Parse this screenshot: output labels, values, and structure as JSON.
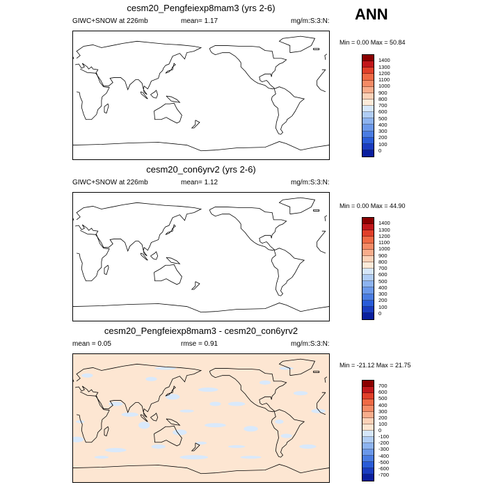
{
  "season": "ANN",
  "panels": [
    {
      "title": "cesm20_Pengfeiexp8mam3 (yrs 2-6)",
      "left_label": "GIWC+SNOW at 226mb",
      "mid_label": "mean=  1.17",
      "units": "mg/m:S:3:N:",
      "minmax": "Min =  0.00 Max =  50.84",
      "colorbar_labels": [
        "1400",
        "1300",
        "1200",
        "1100",
        "1000",
        "900",
        "800",
        "700",
        "600",
        "500",
        "400",
        "300",
        "200",
        "100",
        "0"
      ],
      "colorbar_colors": [
        "#8b0000",
        "#c1171b",
        "#e0402a",
        "#ef6a45",
        "#f48b66",
        "#f8ad8c",
        "#fbd2b8",
        "#fdebd9",
        "#d6e7fa",
        "#b0cdf5",
        "#8db3f0",
        "#6b98ea",
        "#4a7ce2",
        "#2a5cd8",
        "#1a3cc0",
        "#0a1f9e"
      ],
      "filled": false
    },
    {
      "title": "cesm20_con6yrv2 (yrs 2-6)",
      "left_label": "GIWC+SNOW at 226mb",
      "mid_label": "mean=  1.12",
      "units": "mg/m:S:3:N:",
      "minmax": "Min =  0.00 Max =  44.90",
      "colorbar_labels": [
        "1400",
        "1300",
        "1200",
        "1100",
        "1000",
        "900",
        "800",
        "700",
        "600",
        "500",
        "400",
        "300",
        "200",
        "100",
        "0"
      ],
      "colorbar_colors": [
        "#8b0000",
        "#c1171b",
        "#e0402a",
        "#ef6a45",
        "#f48b66",
        "#f8ad8c",
        "#fbd2b8",
        "#fdebd9",
        "#d6e7fa",
        "#b0cdf5",
        "#8db3f0",
        "#6b98ea",
        "#4a7ce2",
        "#2a5cd8",
        "#1a3cc0",
        "#0a1f9e"
      ],
      "filled": false
    },
    {
      "title": "cesm20_Pengfeiexp8mam3 - cesm20_con6yrv2",
      "left_label": "mean =  0.05",
      "mid_label": "rmse =  0.91",
      "units": "mg/m:S:3:N:",
      "minmax": "Min = -21.12 Max =  21.75",
      "colorbar_labels": [
        "700",
        "600",
        "500",
        "400",
        "300",
        "200",
        "100",
        "0",
        "-100",
        "-200",
        "-300",
        "-400",
        "-500",
        "-600",
        "-700"
      ],
      "colorbar_colors": [
        "#8b0000",
        "#c1171b",
        "#e0402a",
        "#ef6a45",
        "#f48b66",
        "#f8ad8c",
        "#fbd2b8",
        "#fde6d2",
        "#d6e7fa",
        "#b0cdf5",
        "#8db3f0",
        "#6b98ea",
        "#4a7ce2",
        "#2a5cd8",
        "#1a3cc0",
        "#0a1f9e"
      ],
      "filled": true,
      "fill_positive": "#fde6d2",
      "fill_negative": "#d9e9fb"
    }
  ]
}
